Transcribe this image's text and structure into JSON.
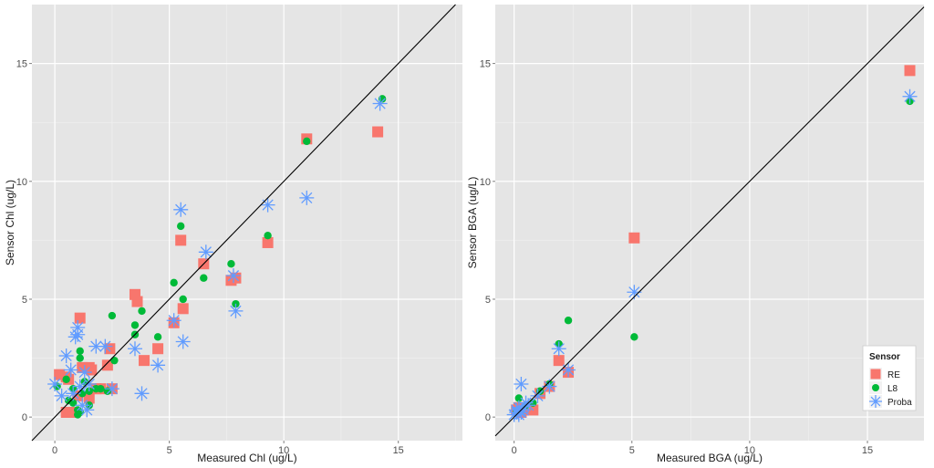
{
  "colors": {
    "RE": "#f8766d",
    "L8": "#00ba38",
    "Proba": "#619cff",
    "panel": "#e5e5e5",
    "grid": "#ffffff"
  },
  "chart_data": [
    {
      "type": "scatter",
      "xlabel": "Measured Chl (ug/L)",
      "ylabel": "Sensor Chl (ug/L)",
      "xlim": [
        -1,
        17.8
      ],
      "ylim": [
        -1,
        17.5
      ],
      "xticks": [
        "0",
        "5",
        "10",
        "15"
      ],
      "yticks": [
        "0",
        "5",
        "10",
        "15"
      ],
      "identity_line": true,
      "series": [
        {
          "name": "RE",
          "shape": "square",
          "points": [
            [
              0.2,
              1.8
            ],
            [
              0.5,
              1.7
            ],
            [
              0.6,
              1.6
            ],
            [
              0.5,
              0.2
            ],
            [
              0.8,
              0.2
            ],
            [
              1.0,
              0.9
            ],
            [
              1.1,
              4.2
            ],
            [
              1.2,
              2.1
            ],
            [
              1.5,
              2.1
            ],
            [
              1.5,
              0.8
            ],
            [
              1.6,
              2.0
            ],
            [
              1.8,
              1.2
            ],
            [
              2.0,
              1.2
            ],
            [
              2.3,
              2.2
            ],
            [
              2.4,
              2.9
            ],
            [
              2.5,
              1.2
            ],
            [
              3.5,
              5.2
            ],
            [
              3.6,
              4.9
            ],
            [
              3.9,
              2.4
            ],
            [
              4.5,
              2.9
            ],
            [
              5.2,
              4.0
            ],
            [
              5.5,
              7.5
            ],
            [
              5.6,
              4.6
            ],
            [
              6.5,
              6.5
            ],
            [
              7.7,
              5.8
            ],
            [
              7.9,
              5.9
            ],
            [
              9.3,
              7.4
            ],
            [
              11.0,
              11.8
            ],
            [
              14.1,
              12.1
            ]
          ]
        },
        {
          "name": "L8",
          "shape": "circle",
          "points": [
            [
              0.1,
              1.3
            ],
            [
              0.5,
              1.6
            ],
            [
              0.6,
              0.7
            ],
            [
              0.8,
              1.2
            ],
            [
              0.8,
              0.6
            ],
            [
              1.0,
              0.3
            ],
            [
              1.0,
              0.1
            ],
            [
              1.1,
              0.2
            ],
            [
              1.1,
              2.5
            ],
            [
              1.1,
              2.8
            ],
            [
              1.2,
              1.0
            ],
            [
              1.3,
              1.5
            ],
            [
              1.5,
              1.1
            ],
            [
              1.5,
              0.5
            ],
            [
              1.8,
              1.2
            ],
            [
              2.0,
              1.2
            ],
            [
              2.3,
              1.1
            ],
            [
              2.5,
              4.3
            ],
            [
              2.6,
              2.4
            ],
            [
              3.5,
              3.9
            ],
            [
              3.5,
              3.5
            ],
            [
              3.8,
              4.5
            ],
            [
              4.5,
              3.4
            ],
            [
              5.2,
              5.7
            ],
            [
              5.5,
              8.1
            ],
            [
              5.6,
              5.0
            ],
            [
              6.5,
              5.9
            ],
            [
              7.7,
              6.5
            ],
            [
              7.9,
              4.8
            ],
            [
              9.3,
              7.7
            ],
            [
              11.0,
              11.7
            ],
            [
              14.3,
              13.5
            ]
          ]
        },
        {
          "name": "Proba",
          "shape": "star",
          "points": [
            [
              0.0,
              1.4
            ],
            [
              0.3,
              0.9
            ],
            [
              0.5,
              2.6
            ],
            [
              0.7,
              2.0
            ],
            [
              0.8,
              1.0
            ],
            [
              0.9,
              3.4
            ],
            [
              1.0,
              3.5
            ],
            [
              1.0,
              3.8
            ],
            [
              1.1,
              1.3
            ],
            [
              1.2,
              0.5
            ],
            [
              1.3,
              1.9
            ],
            [
              1.4,
              0.3
            ],
            [
              1.5,
              1.4
            ],
            [
              1.8,
              3.0
            ],
            [
              2.2,
              3.0
            ],
            [
              2.5,
              1.2
            ],
            [
              3.5,
              2.9
            ],
            [
              3.8,
              1.0
            ],
            [
              4.5,
              2.2
            ],
            [
              5.2,
              4.1
            ],
            [
              5.5,
              8.8
            ],
            [
              5.6,
              3.2
            ],
            [
              6.6,
              7.0
            ],
            [
              7.8,
              6.0
            ],
            [
              7.9,
              4.5
            ],
            [
              9.3,
              9.0
            ],
            [
              11.0,
              9.3
            ],
            [
              14.2,
              13.3
            ]
          ]
        }
      ]
    },
    {
      "type": "scatter",
      "xlabel": "Measured BGA (ug/L)",
      "ylabel": "Sensor BGA (ug/L)",
      "xlim": [
        -0.8,
        17.4
      ],
      "ylim": [
        -1,
        17.5
      ],
      "xticks": [
        "0",
        "5",
        "10",
        "15"
      ],
      "yticks": [
        "0",
        "5",
        "10",
        "15"
      ],
      "identity_line": true,
      "legend": {
        "title": "Sensor",
        "position": "bottom-right",
        "entries": [
          "RE",
          "L8",
          "Proba"
        ]
      },
      "series": [
        {
          "name": "RE",
          "shape": "square",
          "points": [
            [
              0.1,
              0.3
            ],
            [
              0.2,
              0.4
            ],
            [
              0.3,
              0.2
            ],
            [
              0.4,
              0.3
            ],
            [
              0.5,
              0.4
            ],
            [
              0.8,
              0.3
            ],
            [
              1.1,
              1.0
            ],
            [
              1.5,
              1.3
            ],
            [
              1.9,
              2.4
            ],
            [
              2.3,
              1.9
            ],
            [
              5.1,
              7.6
            ],
            [
              16.8,
              14.7
            ]
          ]
        },
        {
          "name": "L8",
          "shape": "circle",
          "points": [
            [
              0.1,
              0.2
            ],
            [
              0.2,
              0.8
            ],
            [
              0.3,
              0.3
            ],
            [
              0.5,
              0.5
            ],
            [
              0.8,
              0.6
            ],
            [
              1.1,
              1.1
            ],
            [
              1.5,
              1.4
            ],
            [
              1.9,
              3.1
            ],
            [
              2.3,
              4.1
            ],
            [
              5.1,
              3.4
            ],
            [
              16.8,
              13.4
            ]
          ]
        },
        {
          "name": "Proba",
          "shape": "star",
          "points": [
            [
              0.0,
              0.1
            ],
            [
              0.1,
              0.2
            ],
            [
              0.1,
              0.3
            ],
            [
              0.2,
              0.1
            ],
            [
              0.2,
              0.4
            ],
            [
              0.3,
              0.2
            ],
            [
              0.3,
              1.4
            ],
            [
              0.4,
              0.3
            ],
            [
              0.5,
              0.6
            ],
            [
              0.6,
              0.5
            ],
            [
              1.0,
              0.9
            ],
            [
              1.5,
              1.3
            ],
            [
              1.9,
              2.9
            ],
            [
              2.3,
              2.0
            ],
            [
              5.1,
              5.3
            ],
            [
              16.8,
              13.6
            ]
          ]
        }
      ]
    }
  ]
}
